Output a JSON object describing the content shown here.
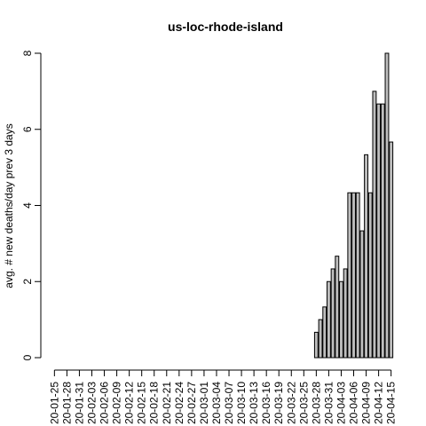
{
  "chart_data": {
    "type": "bar",
    "title": "us-loc-rhode-island",
    "xlabel": "",
    "ylabel": "avg. # new deaths/day prev  3  days",
    "ylim": [
      0,
      8
    ],
    "yticks": [
      0,
      2,
      4,
      6,
      8
    ],
    "grid": false,
    "legend": "none",
    "colors": {
      "bar_fill": "#bebebe",
      "bar_stroke": "#000000"
    },
    "categories": [
      "20-01-25",
      "20-01-26",
      "20-01-27",
      "20-01-28",
      "20-01-29",
      "20-01-30",
      "20-01-31",
      "20-02-01",
      "20-02-02",
      "20-02-03",
      "20-02-04",
      "20-02-05",
      "20-02-06",
      "20-02-07",
      "20-02-08",
      "20-02-09",
      "20-02-10",
      "20-02-11",
      "20-02-12",
      "20-02-13",
      "20-02-14",
      "20-02-15",
      "20-02-16",
      "20-02-17",
      "20-02-18",
      "20-02-19",
      "20-02-20",
      "20-02-21",
      "20-02-22",
      "20-02-23",
      "20-02-24",
      "20-02-25",
      "20-02-26",
      "20-02-27",
      "20-02-28",
      "20-02-29",
      "20-03-01",
      "20-03-02",
      "20-03-03",
      "20-03-04",
      "20-03-05",
      "20-03-06",
      "20-03-07",
      "20-03-08",
      "20-03-09",
      "20-03-10",
      "20-03-11",
      "20-03-12",
      "20-03-13",
      "20-03-14",
      "20-03-15",
      "20-03-16",
      "20-03-17",
      "20-03-18",
      "20-03-19",
      "20-03-20",
      "20-03-21",
      "20-03-22",
      "20-03-23",
      "20-03-24",
      "20-03-25",
      "20-03-26",
      "20-03-27",
      "20-03-28",
      "20-03-29",
      "20-03-30",
      "20-03-31",
      "20-04-01",
      "20-04-02",
      "20-04-03",
      "20-04-04",
      "20-04-05",
      "20-04-06",
      "20-04-07",
      "20-04-08",
      "20-04-09",
      "20-04-10",
      "20-04-11",
      "20-04-12",
      "20-04-13",
      "20-04-14",
      "20-04-15"
    ],
    "values": [
      0,
      0,
      0,
      0,
      0,
      0,
      0,
      0,
      0,
      0,
      0,
      0,
      0,
      0,
      0,
      0,
      0,
      0,
      0,
      0,
      0,
      0,
      0,
      0,
      0,
      0,
      0,
      0,
      0,
      0,
      0,
      0,
      0,
      0,
      0,
      0,
      0,
      0,
      0,
      0,
      0,
      0,
      0,
      0,
      0,
      0,
      0,
      0,
      0,
      0,
      0,
      0,
      0,
      0,
      0,
      0,
      0,
      0,
      0,
      0,
      0,
      0,
      0,
      0.667,
      1,
      1.333,
      2,
      2.333,
      2.667,
      2,
      2.333,
      4.333,
      4.333,
      4.333,
      3.333,
      5.333,
      4.333,
      7,
      6.667,
      6.667,
      8,
      5.667
    ],
    "x_tick_labels": [
      "20-01-25",
      "20-01-28",
      "20-01-31",
      "20-02-03",
      "20-02-06",
      "20-02-09",
      "20-02-12",
      "20-02-15",
      "20-02-18",
      "20-02-21",
      "20-02-24",
      "20-02-27",
      "20-03-01",
      "20-03-04",
      "20-03-07",
      "20-03-10",
      "20-03-13",
      "20-03-16",
      "20-03-19",
      "20-03-22",
      "20-03-25",
      "20-03-28",
      "20-03-31",
      "20-04-03",
      "20-04-06",
      "20-04-09",
      "20-04-12",
      "20-04-15"
    ]
  }
}
